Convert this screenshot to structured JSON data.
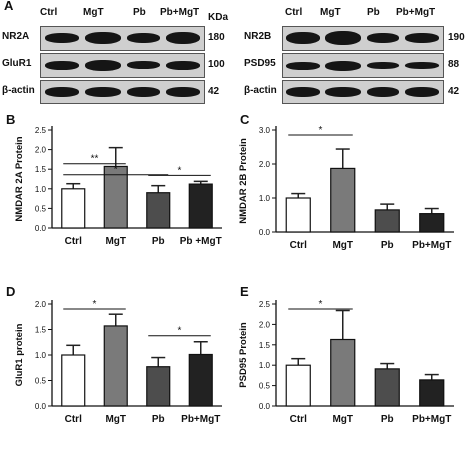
{
  "panel_A": {
    "letter": "A",
    "left_lanes": [
      "Ctrl",
      "MgT",
      "Pb",
      "Pb+MgT"
    ],
    "right_lanes": [
      "Ctrl",
      "MgT",
      "Pb",
      "Pb+MgT"
    ],
    "kda_label": "KDa",
    "left_rows": [
      {
        "label": "NR2A",
        "mw": "180"
      },
      {
        "label": "GluR1",
        "mw": "100"
      },
      {
        "label": "β-actin",
        "mw": "42"
      }
    ],
    "right_rows": [
      {
        "label": "NR2B",
        "mw": "190"
      },
      {
        "label": "PSD95",
        "mw": "88"
      },
      {
        "label": "β-actin",
        "mw": "42"
      }
    ]
  },
  "chart_data": [
    {
      "panel": "B",
      "type": "bar",
      "categories": [
        "Ctrl",
        "MgT",
        "Pb",
        "Pb +MgT"
      ],
      "values": [
        1.0,
        1.57,
        0.9,
        1.12
      ],
      "errors": [
        0.13,
        0.48,
        0.18,
        0.07
      ],
      "ylabel": "NMDAR 2A  Protein",
      "ylim": [
        0,
        2.5
      ],
      "yticks": [
        "0.0",
        "0.5",
        "1.0",
        "1.5",
        "2.0",
        "2.5"
      ],
      "significance": [
        {
          "from": 0,
          "to": 1,
          "label": "**"
        },
        {
          "from": 0,
          "to": 2,
          "label": "*"
        },
        {
          "from": 2,
          "to": 3,
          "label": "*"
        }
      ]
    },
    {
      "panel": "C",
      "type": "bar",
      "categories": [
        "Ctrl",
        "MgT",
        "Pb",
        "Pb+MgT"
      ],
      "values": [
        1.0,
        1.87,
        0.65,
        0.54
      ],
      "errors": [
        0.13,
        0.57,
        0.17,
        0.15
      ],
      "ylabel": "NMDAR 2B Protein",
      "ylim": [
        0,
        3.0
      ],
      "yticks": [
        "0.0",
        "1.0",
        "2.0",
        "3.0"
      ],
      "significance": [
        {
          "from": 0,
          "to": 1,
          "label": "*"
        }
      ]
    },
    {
      "panel": "D",
      "type": "bar",
      "categories": [
        "Ctrl",
        "MgT",
        "Pb",
        "Pb+MgT"
      ],
      "values": [
        1.0,
        1.57,
        0.77,
        1.01
      ],
      "errors": [
        0.19,
        0.23,
        0.18,
        0.25
      ],
      "ylabel": "GluR1 protein",
      "ylim": [
        0,
        2.0
      ],
      "yticks": [
        "0.0",
        "0.5",
        "1.0",
        "1.5",
        "2.0"
      ],
      "significance": [
        {
          "from": 0,
          "to": 1,
          "label": "*"
        },
        {
          "from": 2,
          "to": 3,
          "label": "*"
        }
      ]
    },
    {
      "panel": "E",
      "type": "bar",
      "categories": [
        "Ctrl",
        "MgT",
        "Pb",
        "Pb+MgT"
      ],
      "values": [
        1.0,
        1.63,
        0.91,
        0.64
      ],
      "errors": [
        0.16,
        0.71,
        0.13,
        0.13
      ],
      "ylabel": "PSD95 Protein",
      "ylim": [
        0,
        2.5
      ],
      "yticks": [
        "0.0",
        "0.5",
        "1.0",
        "1.5",
        "2.0",
        "2.5"
      ],
      "significance": [
        {
          "from": 0,
          "to": 1,
          "label": "*"
        }
      ]
    }
  ],
  "colors": {
    "bar_fills": [
      "#ffffff",
      "#7a7a7a",
      "#4d4d4d",
      "#222222"
    ],
    "axis": "#111111"
  }
}
